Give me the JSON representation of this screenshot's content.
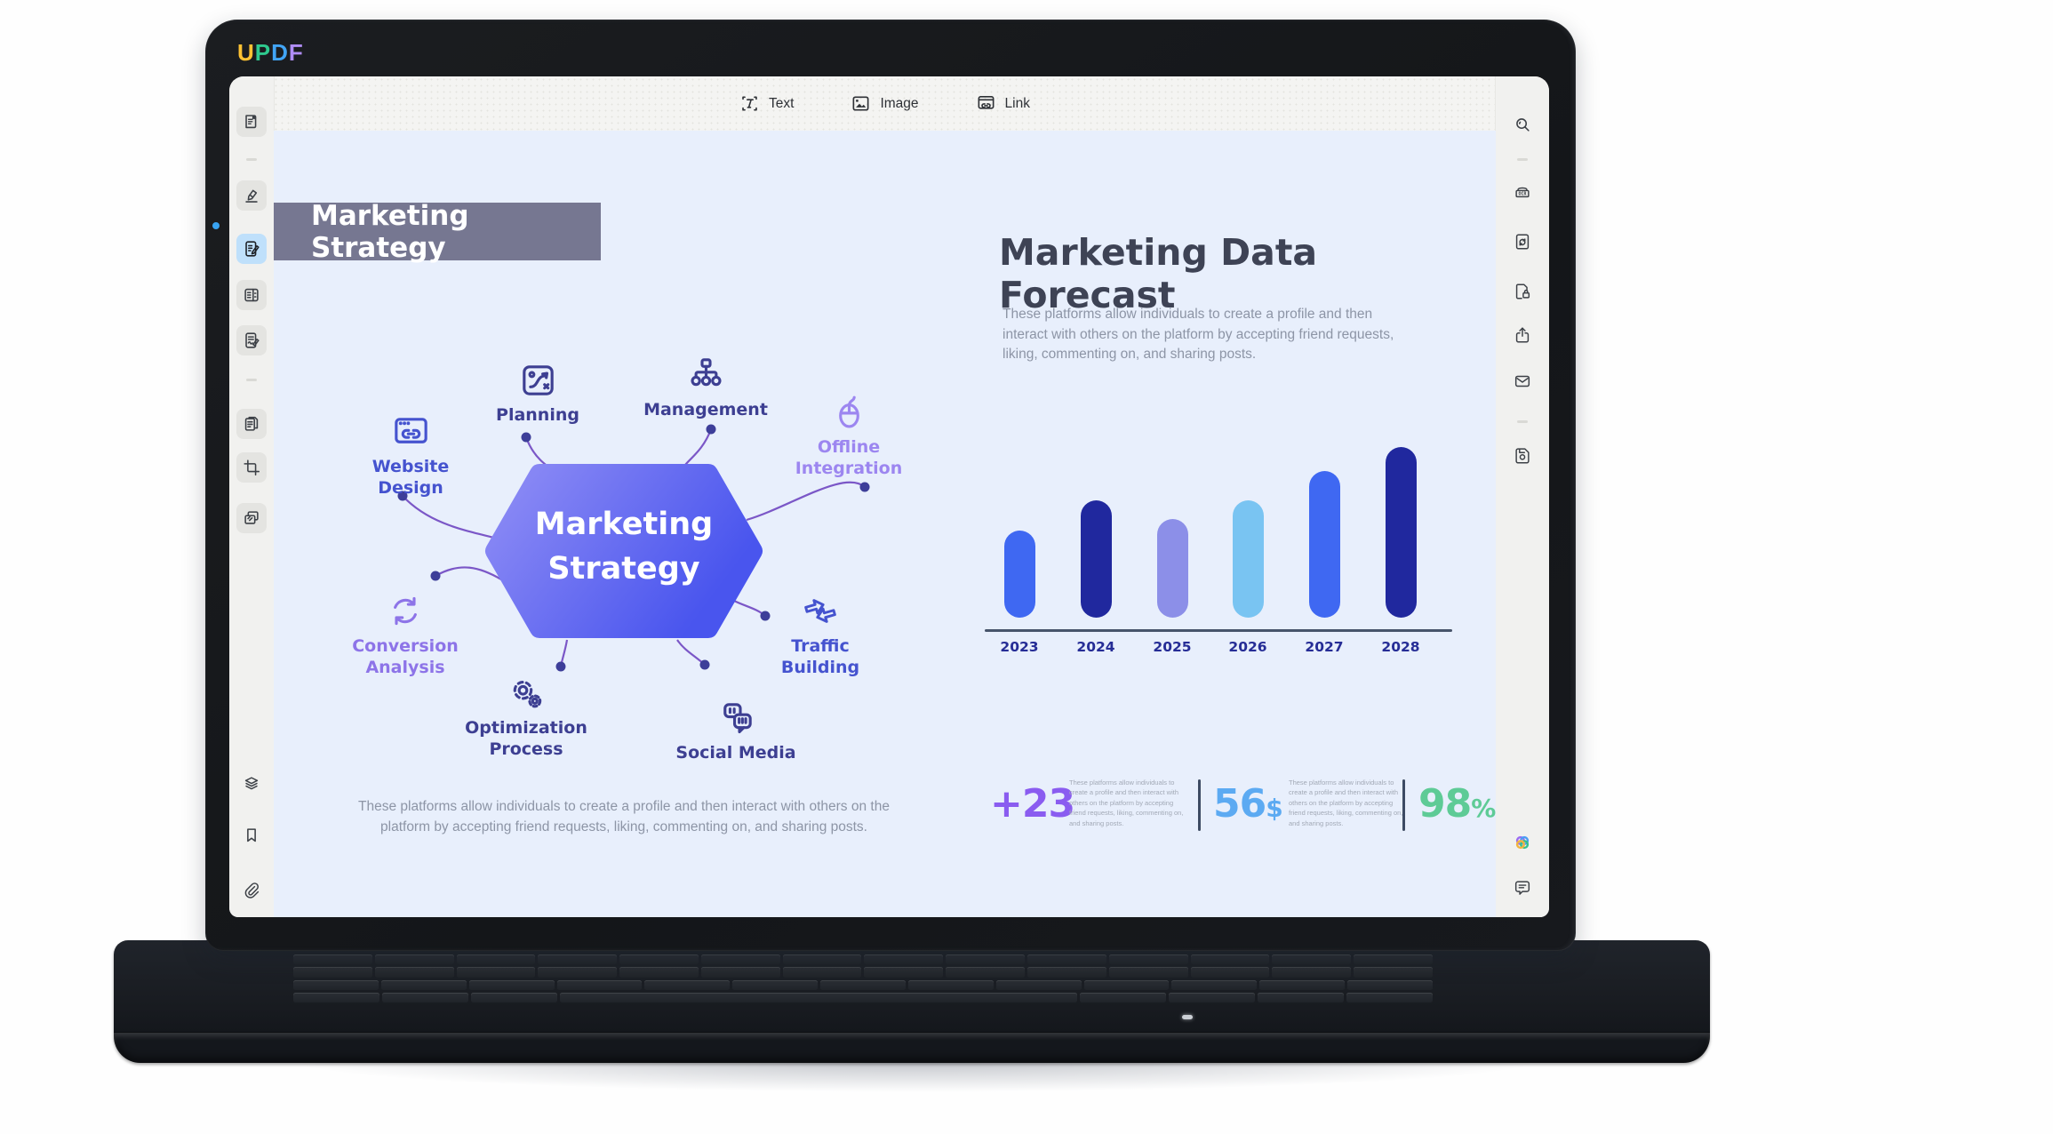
{
  "logo": {
    "letters": [
      {
        "char": "U",
        "color": "#ffc233"
      },
      {
        "char": "P",
        "color": "#2ec98e"
      },
      {
        "char": "D",
        "color": "#41a4f5"
      },
      {
        "char": "F",
        "color": "#b08df7"
      }
    ]
  },
  "toolbar": {
    "text_label": "Text",
    "image_label": "Image",
    "link_label": "Link"
  },
  "left_sidebar": {
    "icons": [
      "reader-icon",
      "annotate-icon",
      "edit-icon",
      "forms-icon",
      "sign-icon",
      "pages-icon",
      "crop-icon",
      "watermark-icon",
      "layers-icon",
      "bookmark-icon",
      "attachment-icon"
    ],
    "active_icon": "edit-icon"
  },
  "right_sidebar": {
    "icons": [
      "search-icon",
      "ocr-icon",
      "convert-icon",
      "protect-icon",
      "share-icon",
      "email-icon",
      "save-icon",
      "ai-assistant-icon",
      "comment-icon"
    ]
  },
  "slide": {
    "header_label": "Marketing Strategy",
    "mindmap": {
      "center_line1": "Marketing",
      "center_line2": "Strategy",
      "hex_gradient_start": "#8f8df5",
      "hex_gradient_end": "#4955ee",
      "nodes": [
        {
          "label": "Planning",
          "color": "#3d3f92"
        },
        {
          "label": "Management",
          "color": "#3d3f92"
        },
        {
          "label": "Offline Integration",
          "color": "#9c86f0"
        },
        {
          "label": "Website Design",
          "color": "#4553cf"
        },
        {
          "label": "Conversion Analysis",
          "color": "#8d74e8"
        },
        {
          "label": "Optimization Process",
          "color": "#3d3f92"
        },
        {
          "label": "Social Media",
          "color": "#3d3f92"
        },
        {
          "label": "Traffic Building",
          "color": "#4553cf"
        }
      ]
    },
    "body_text": "These platforms allow individuals to create a profile and then interact with others on the platform by accepting friend requests, liking, commenting on, and sharing posts.",
    "forecast_title": "Marketing Data Forecast",
    "stats": [
      {
        "value": "+23",
        "color": "#8a5cf0"
      },
      {
        "value": "56$",
        "color": "#5caaf2"
      },
      {
        "value": "98%",
        "color": "#5ecb96"
      }
    ]
  },
  "chart_data": {
    "type": "bar",
    "title": "Marketing Data Forecast",
    "categories": [
      "2023",
      "2024",
      "2025",
      "2026",
      "2027",
      "2028"
    ],
    "values": [
      51,
      69,
      58,
      69,
      86,
      100
    ],
    "colors": [
      "#3f68f2",
      "#20289e",
      "#8c8fe8",
      "#79c4f2",
      "#3f68f2",
      "#20289e"
    ],
    "xlabel": "",
    "ylabel": "",
    "ylim": [
      0,
      100
    ],
    "grid": false,
    "legend": false,
    "baseline_color": "#47546b",
    "tick_label_color": "#262d96"
  }
}
